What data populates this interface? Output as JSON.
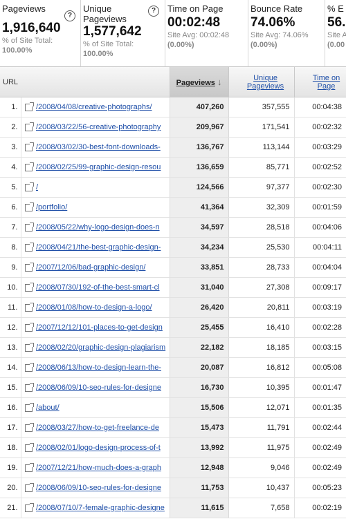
{
  "metrics": [
    {
      "title": "Pageviews",
      "value": "1,916,640",
      "sub1": "% of Site Total:",
      "sub2": "100.00%"
    },
    {
      "title": "Unique Pageviews",
      "value": "1,577,642",
      "sub1": "% of Site Total:",
      "sub2": "100.00%"
    },
    {
      "title": "Time on Page",
      "value": "00:02:48",
      "sub1": "Site Avg: 00:02:48",
      "sub2": "(0.00%)"
    },
    {
      "title": "Bounce Rate",
      "value": "74.06%",
      "sub1": "Site Avg: 74.06%",
      "sub2": "(0.00%)"
    },
    {
      "title": "% E",
      "value": "56.",
      "sub1": "Site A",
      "sub2": "(0.00"
    }
  ],
  "help_icon": "?",
  "table": {
    "headers": {
      "url": "URL",
      "pageviews": "Pageviews",
      "pageviews_arrow": "↓",
      "unique": "Unique Pageviews",
      "time": "Time on Page"
    },
    "rows": [
      {
        "n": "1.",
        "url": "/2008/04/08/creative-photographs/",
        "pv": "407,260",
        "upv": "357,555",
        "t": "00:04:38"
      },
      {
        "n": "2.",
        "url": "/2008/03/22/56-creative-photography",
        "pv": "209,967",
        "upv": "171,541",
        "t": "00:02:32"
      },
      {
        "n": "3.",
        "url": "/2008/03/02/30-best-font-downloads-",
        "pv": "136,767",
        "upv": "113,144",
        "t": "00:03:29"
      },
      {
        "n": "4.",
        "url": "/2008/02/25/99-graphic-design-resou",
        "pv": "136,659",
        "upv": "85,771",
        "t": "00:02:52"
      },
      {
        "n": "5.",
        "url": "/",
        "pv": "124,566",
        "upv": "97,377",
        "t": "00:02:30"
      },
      {
        "n": "6.",
        "url": "/portfolio/",
        "pv": "41,364",
        "upv": "32,309",
        "t": "00:01:59"
      },
      {
        "n": "7.",
        "url": "/2008/05/22/why-logo-design-does-n",
        "pv": "34,597",
        "upv": "28,518",
        "t": "00:04:06"
      },
      {
        "n": "8.",
        "url": "/2008/04/21/the-best-graphic-design-",
        "pv": "34,234",
        "upv": "25,530",
        "t": "00:04:11"
      },
      {
        "n": "9.",
        "url": "/2007/12/06/bad-graphic-design/",
        "pv": "33,851",
        "upv": "28,733",
        "t": "00:04:04"
      },
      {
        "n": "10.",
        "url": "/2008/07/30/192-of-the-best-smart-cl",
        "pv": "31,040",
        "upv": "27,308",
        "t": "00:09:17"
      },
      {
        "n": "11.",
        "url": "/2008/01/08/how-to-design-a-logo/",
        "pv": "26,420",
        "upv": "20,811",
        "t": "00:03:19"
      },
      {
        "n": "12.",
        "url": "/2007/12/12/101-places-to-get-design",
        "pv": "25,455",
        "upv": "16,410",
        "t": "00:02:28"
      },
      {
        "n": "13.",
        "url": "/2008/02/20/graphic-design-plagiarism",
        "pv": "22,182",
        "upv": "18,185",
        "t": "00:03:15"
      },
      {
        "n": "14.",
        "url": "/2008/06/13/how-to-design-learn-the-",
        "pv": "20,087",
        "upv": "16,812",
        "t": "00:05:08"
      },
      {
        "n": "15.",
        "url": "/2008/06/09/10-seo-rules-for-designe",
        "pv": "16,730",
        "upv": "10,395",
        "t": "00:01:47"
      },
      {
        "n": "16.",
        "url": "/about/",
        "pv": "15,506",
        "upv": "12,071",
        "t": "00:01:35"
      },
      {
        "n": "17.",
        "url": "/2008/03/27/how-to-get-freelance-de",
        "pv": "15,473",
        "upv": "11,791",
        "t": "00:02:44"
      },
      {
        "n": "18.",
        "url": "/2008/02/01/logo-design-process-of-t",
        "pv": "13,992",
        "upv": "11,975",
        "t": "00:02:49"
      },
      {
        "n": "19.",
        "url": "/2007/12/21/how-much-does-a-graph",
        "pv": "12,948",
        "upv": "9,046",
        "t": "00:02:49"
      },
      {
        "n": "20.",
        "url": "/2008/06/09/10-seo-rules-for-designe",
        "pv": "11,753",
        "upv": "10,437",
        "t": "00:05:23"
      },
      {
        "n": "21.",
        "url": "/2008/07/10/7-female-graphic-designe",
        "pv": "11,615",
        "upv": "7,658",
        "t": "00:02:19"
      }
    ]
  }
}
